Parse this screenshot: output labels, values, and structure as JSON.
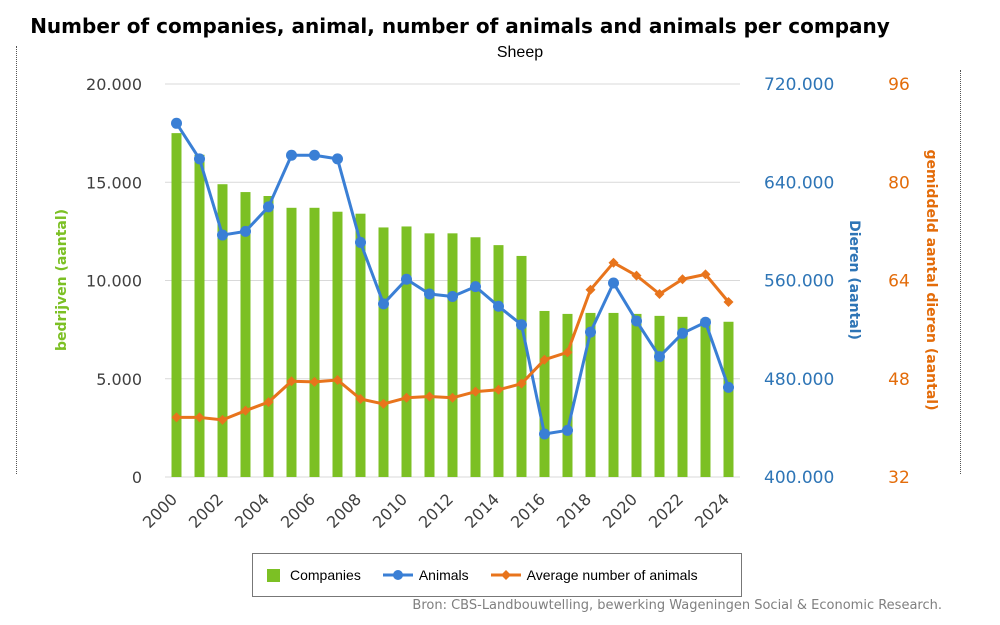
{
  "title": "Number of companies, animal, number of animals and animals per company",
  "subtitle": "Sheep",
  "source": "Bron: CBS-Landbouwtelling, bewerking Wageningen Social & Economic Research.",
  "legend": {
    "companies": "Companies",
    "animals": "Animals",
    "average": "Average number of animals"
  },
  "axes": {
    "left_label": "bedrijven (aantal)",
    "mid_label": "Dieren  (aantal)",
    "right_label": "gemiddeld aantal dieren (aantal)",
    "left_ticks": [
      "0",
      "5.000",
      "10.000",
      "15.000",
      "20.000"
    ],
    "mid_ticks": [
      "400.000",
      "480.000",
      "560.000",
      "640.000",
      "720.000"
    ],
    "right_ticks": [
      "32",
      "48",
      "64",
      "80",
      "96"
    ]
  },
  "colors": {
    "companies": "#7cc024",
    "animals": "#3a7fd5",
    "average": "#e8741c",
    "grid": "#d9d9d9"
  },
  "chart_data": {
    "type": "bar",
    "title": "Number of companies, animal, number of animals and animals per company",
    "subtitle": "Sheep",
    "x": [
      2000,
      2001,
      2002,
      2003,
      2004,
      2005,
      2006,
      2007,
      2008,
      2009,
      2010,
      2011,
      2012,
      2013,
      2014,
      2015,
      2016,
      2017,
      2018,
      2019,
      2020,
      2021,
      2022,
      2023,
      2024
    ],
    "x_tick_labels": [
      "2000",
      "2002",
      "2004",
      "2006",
      "2008",
      "2010",
      "2012",
      "2014",
      "2016",
      "2018",
      "2020",
      "2022",
      "2024"
    ],
    "series": [
      {
        "name": "Companies",
        "type": "bar",
        "axis": "left",
        "values": [
          17500,
          16400,
          14900,
          14500,
          14300,
          13700,
          13700,
          13500,
          13400,
          12700,
          12750,
          12400,
          12400,
          12200,
          11800,
          11250,
          8450,
          8300,
          8350,
          8350,
          8300,
          8200,
          8150,
          8050,
          7900
        ]
      },
      {
        "name": "Animals",
        "type": "line",
        "axis": "mid",
        "values": [
          688000,
          659000,
          597000,
          600000,
          620000,
          662000,
          662000,
          659000,
          591000,
          541000,
          561000,
          549000,
          547000,
          555000,
          539000,
          524000,
          435000,
          438000,
          518000,
          558000,
          527000,
          498000,
          517000,
          526000,
          473000
        ]
      },
      {
        "name": "Average number of animals",
        "type": "line",
        "axis": "right",
        "values": [
          41.7,
          41.7,
          41.3,
          42.8,
          44.2,
          47.6,
          47.5,
          47.8,
          44.7,
          43.9,
          44.9,
          45.1,
          44.9,
          45.9,
          46.2,
          47.2,
          51.1,
          52.3,
          62.5,
          66.9,
          64.8,
          61.8,
          64.2,
          65.0,
          60.5
        ]
      }
    ],
    "ylabel_left": "bedrijven (aantal)",
    "ylim_left": [
      0,
      20000
    ],
    "ylabel_mid": "Dieren  (aantal)",
    "ylim_mid": [
      400000,
      720000
    ],
    "ylabel_right": "gemiddeld aantal dieren (aantal)",
    "ylim_right": [
      32,
      96
    ],
    "grid": true,
    "legend_position": "bottom"
  }
}
